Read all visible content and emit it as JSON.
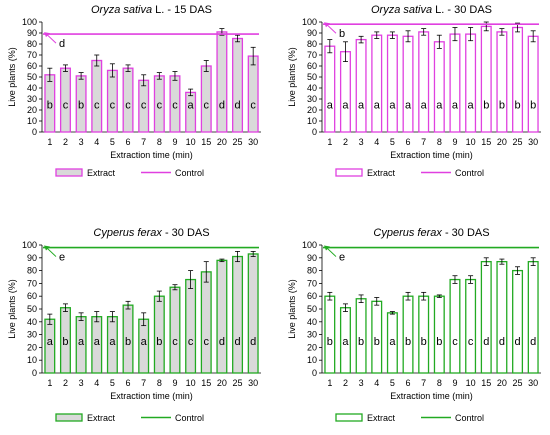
{
  "chart_data": [
    {
      "type": "bar",
      "title": {
        "species": "Oryza sativa",
        "rest": " L. - 15 DAS"
      },
      "xlabel": "Extraction time (min)",
      "ylabel": "Live plants (%)",
      "categories": [
        "1",
        "2",
        "3",
        "4",
        "5",
        "6",
        "7",
        "8",
        "9",
        "10",
        "15",
        "20",
        "25",
        "30"
      ],
      "ylim": [
        0,
        100
      ],
      "yticks": [
        "0",
        "10",
        "20",
        "30",
        "40",
        "50",
        "60",
        "70",
        "80",
        "90",
        "100"
      ],
      "grid": false,
      "color": "#e040e0",
      "fill": "#d9d9d9",
      "series": [
        {
          "name": "Extract",
          "values": [
            52,
            58,
            51,
            65,
            56,
            58,
            47,
            51,
            51,
            36,
            60,
            91,
            85,
            69
          ],
          "errors": [
            6,
            3,
            3,
            5,
            6,
            3,
            5,
            3,
            4,
            3,
            5,
            3,
            3,
            8
          ],
          "letters": [
            "b",
            "c",
            "b",
            "c",
            "c",
            "c",
            "c",
            "c",
            "c",
            "a",
            "c",
            "d",
            "d",
            "c"
          ]
        },
        {
          "name": "Control",
          "value": 89,
          "letter": "d"
        }
      ],
      "legend": {
        "extract": "Extract",
        "control": "Control",
        "position": "bottom"
      }
    },
    {
      "type": "bar",
      "title": {
        "species": "Oryza sativa",
        "rest": " L. - 30 DAS"
      },
      "xlabel": "Extraction time (min)",
      "ylabel": "Live plants (%)",
      "categories": [
        "1",
        "2",
        "3",
        "4",
        "5",
        "6",
        "7",
        "8",
        "9",
        "10",
        "15",
        "20",
        "25",
        "30"
      ],
      "ylim": [
        0,
        100
      ],
      "yticks": [
        "0",
        "10",
        "20",
        "30",
        "40",
        "50",
        "60",
        "70",
        "80",
        "90",
        "100"
      ],
      "grid": false,
      "color": "#e040e0",
      "fill": "#ffffff",
      "series": [
        {
          "name": "Extract",
          "values": [
            78,
            73,
            84,
            88,
            88,
            87,
            91,
            82,
            89,
            89,
            96,
            91,
            95,
            87
          ],
          "errors": [
            6,
            9,
            3,
            3,
            3,
            5,
            3,
            6,
            6,
            6,
            4,
            3,
            4,
            5
          ],
          "letters": [
            "a",
            "a",
            "a",
            "a",
            "a",
            "a",
            "a",
            "a",
            "a",
            "a",
            "b",
            "b",
            "b",
            "b"
          ]
        },
        {
          "name": "Control",
          "value": 98,
          "letter": "b"
        }
      ],
      "legend": {
        "extract": "Extract",
        "control": "Control",
        "position": "bottom"
      }
    },
    {
      "type": "bar",
      "title": {
        "species": "Cyperus ferax",
        "rest": " - 30 DAS"
      },
      "xlabel": "Extraction time (min)",
      "ylabel": "Live plants (%)",
      "categories": [
        "1",
        "2",
        "3",
        "4",
        "5",
        "6",
        "7",
        "8",
        "9",
        "10",
        "15",
        "20",
        "25",
        "30"
      ],
      "ylim": [
        0,
        100
      ],
      "yticks": [
        "0",
        "10",
        "20",
        "30",
        "40",
        "50",
        "60",
        "70",
        "80",
        "90",
        "100"
      ],
      "grid": false,
      "color": "#22aa22",
      "fill": "#d9d9d9",
      "series": [
        {
          "name": "Extract",
          "values": [
            42,
            51,
            44,
            44,
            44,
            53,
            42,
            60,
            67,
            73,
            79,
            88,
            91,
            93
          ],
          "errors": [
            4,
            3,
            3,
            4,
            4,
            3,
            5,
            4,
            2,
            7,
            8,
            1,
            4,
            2
          ],
          "letters": [
            "a",
            "b",
            "a",
            "a",
            "a",
            "b",
            "a",
            "b",
            "c",
            "c",
            "c",
            "d",
            "d",
            "d"
          ]
        },
        {
          "name": "Control",
          "value": 98,
          "letter": "e"
        }
      ],
      "legend": {
        "extract": "Extract",
        "control": "Control",
        "position": "bottom"
      }
    },
    {
      "type": "bar",
      "title": {
        "species": "Cyperus ferax",
        "rest": " - 30 DAS"
      },
      "xlabel": "Extraction time (min)",
      "ylabel": "Live plants (%)",
      "categories": [
        "1",
        "2",
        "3",
        "4",
        "5",
        "6",
        "7",
        "8",
        "9",
        "10",
        "15",
        "20",
        "25",
        "30"
      ],
      "ylim": [
        0,
        100
      ],
      "yticks": [
        "0",
        "10",
        "20",
        "30",
        "40",
        "50",
        "60",
        "70",
        "80",
        "90",
        "100"
      ],
      "grid": false,
      "color": "#22aa22",
      "fill": "#ffffff",
      "series": [
        {
          "name": "Extract",
          "values": [
            60,
            51,
            58,
            56,
            47,
            60,
            60,
            60,
            73,
            73,
            87,
            87,
            80,
            87
          ],
          "errors": [
            3,
            3,
            3,
            3,
            1,
            3,
            3,
            1,
            3,
            3,
            3,
            2,
            3,
            3
          ],
          "letters": [
            "b",
            "a",
            "b",
            "b",
            "a",
            "b",
            "b",
            "b",
            "c",
            "c",
            "d",
            "d",
            "d",
            "d"
          ]
        },
        {
          "name": "Control",
          "value": 98,
          "letter": "e"
        }
      ],
      "legend": {
        "extract": "Extract",
        "control": "Control",
        "position": "bottom"
      }
    }
  ]
}
